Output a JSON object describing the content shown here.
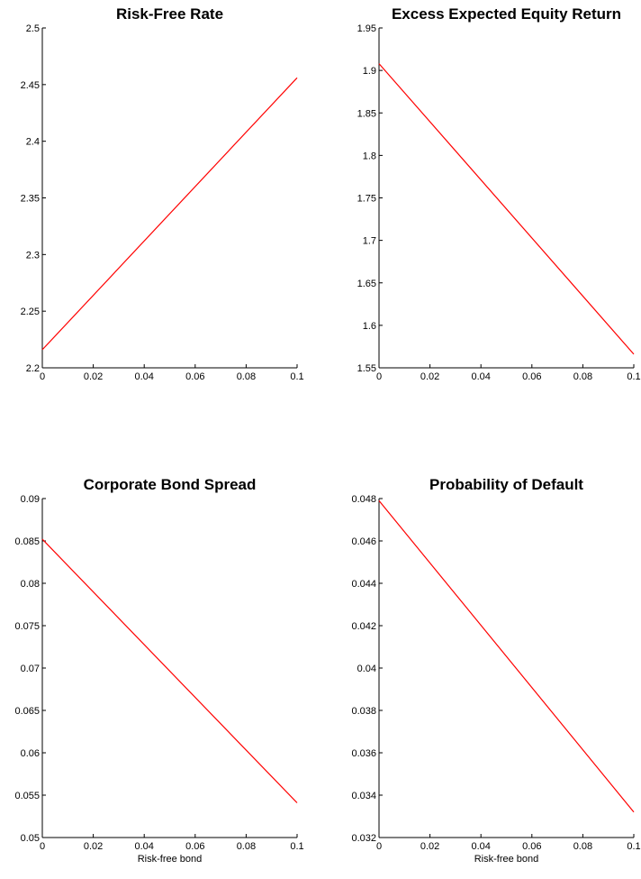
{
  "chart_data": [
    {
      "type": "line",
      "title": "Risk-Free Rate",
      "xlabel": "",
      "ylabel": "",
      "xlim": [
        0,
        0.1
      ],
      "ylim": [
        2.2,
        2.5
      ],
      "xticks": [
        "0",
        "0.02",
        "0.04",
        "0.06",
        "0.08",
        "0.1"
      ],
      "yticks": [
        "2.2",
        "2.25",
        "2.3",
        "2.35",
        "2.4",
        "2.45",
        "2.5"
      ],
      "grid": false,
      "line_color": "#ff0000",
      "series": [
        {
          "x": [
            0,
            0.1
          ],
          "y": [
            2.216,
            2.456
          ]
        }
      ]
    },
    {
      "type": "line",
      "title": "Excess Expected Equity Return",
      "xlabel": "",
      "ylabel": "",
      "xlim": [
        0,
        0.1
      ],
      "ylim": [
        1.55,
        1.95
      ],
      "xticks": [
        "0",
        "0.02",
        "0.04",
        "0.06",
        "0.08",
        "0.1"
      ],
      "yticks": [
        "1.55",
        "1.6",
        "1.65",
        "1.7",
        "1.75",
        "1.8",
        "1.85",
        "1.9",
        "1.95"
      ],
      "grid": false,
      "line_color": "#ff0000",
      "series": [
        {
          "x": [
            0,
            0.1
          ],
          "y": [
            1.908,
            1.566
          ]
        }
      ]
    },
    {
      "type": "line",
      "title": "Corporate Bond Spread",
      "xlabel": "Risk-free bond",
      "ylabel": "",
      "xlim": [
        0,
        0.1
      ],
      "ylim": [
        0.05,
        0.09
      ],
      "xticks": [
        "0",
        "0.02",
        "0.04",
        "0.06",
        "0.08",
        "0.1"
      ],
      "yticks": [
        "0.05",
        "0.055",
        "0.06",
        "0.065",
        "0.07",
        "0.075",
        "0.08",
        "0.085",
        "0.09"
      ],
      "grid": false,
      "line_color": "#ff0000",
      "series": [
        {
          "x": [
            0,
            0.1
          ],
          "y": [
            0.0852,
            0.0541
          ]
        }
      ]
    },
    {
      "type": "line",
      "title": "Probability of Default",
      "xlabel": "Risk-free bond",
      "ylabel": "",
      "xlim": [
        0,
        0.1
      ],
      "ylim": [
        0.032,
        0.048
      ],
      "xticks": [
        "0",
        "0.02",
        "0.04",
        "0.06",
        "0.08",
        "0.1"
      ],
      "yticks": [
        "0.032",
        "0.034",
        "0.036",
        "0.038",
        "0.04",
        "0.042",
        "0.044",
        "0.046",
        "0.048"
      ],
      "grid": false,
      "line_color": "#ff0000",
      "series": [
        {
          "x": [
            0,
            0.1
          ],
          "y": [
            0.0479,
            0.0332
          ]
        }
      ]
    }
  ]
}
